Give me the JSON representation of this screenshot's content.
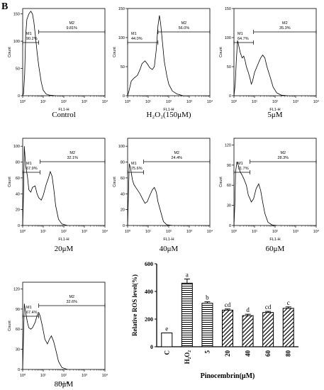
{
  "figure": {
    "panel_label": "B",
    "hist_ylabel": "Count",
    "hist_xlabel": "FL1-H",
    "xtick_labels": [
      "10⁰",
      "10¹",
      "10²",
      "10³",
      "10⁴"
    ]
  },
  "chart_data": [
    {
      "type": "histogram",
      "caption": "Control",
      "xscale": "log",
      "xlim": [
        1,
        10000
      ],
      "ylim": [
        0,
        160
      ],
      "yticks": [
        0,
        50,
        100,
        150
      ],
      "gates": [
        {
          "label": "M1",
          "percent": "90.2%",
          "from": 1,
          "to": 6
        },
        {
          "label": "M2",
          "percent": "9.81%",
          "from": 6,
          "to": 10000
        }
      ],
      "curve": [
        [
          1,
          0
        ],
        [
          1.1,
          4
        ],
        [
          1.25,
          40
        ],
        [
          1.4,
          110
        ],
        [
          1.6,
          140
        ],
        [
          2,
          150
        ],
        [
          2.5,
          155
        ],
        [
          3,
          150
        ],
        [
          3.5,
          135
        ],
        [
          4,
          115
        ],
        [
          5,
          80
        ],
        [
          6,
          55
        ],
        [
          8,
          25
        ],
        [
          10,
          10
        ],
        [
          14,
          3
        ],
        [
          20,
          1
        ],
        [
          40,
          0
        ]
      ]
    },
    {
      "type": "histogram",
      "caption": "H₂O₂(150μM)",
      "xscale": "log",
      "xlim": [
        1,
        10000
      ],
      "ylim": [
        0,
        150
      ],
      "yticks": [
        0,
        50,
        100,
        150
      ],
      "gates": [
        {
          "label": "M1",
          "percent": "44.0%",
          "from": 1,
          "to": 30
        },
        {
          "label": "M2",
          "percent": "56.0%",
          "from": 30,
          "to": 10000
        }
      ],
      "curve": [
        [
          1,
          0
        ],
        [
          1.2,
          10
        ],
        [
          1.5,
          25
        ],
        [
          2,
          30
        ],
        [
          3,
          35
        ],
        [
          4,
          45
        ],
        [
          5,
          55
        ],
        [
          7,
          60
        ],
        [
          9,
          55
        ],
        [
          12,
          48
        ],
        [
          16,
          45
        ],
        [
          20,
          50
        ],
        [
          25,
          80
        ],
        [
          30,
          120
        ],
        [
          35,
          138
        ],
        [
          40,
          125
        ],
        [
          50,
          90
        ],
        [
          60,
          60
        ],
        [
          80,
          35
        ],
        [
          100,
          20
        ],
        [
          150,
          8
        ],
        [
          250,
          3
        ],
        [
          500,
          0
        ]
      ]
    },
    {
      "type": "histogram",
      "caption": "5μM",
      "xscale": "log",
      "xlim": [
        1,
        10000
      ],
      "ylim": [
        0,
        150
      ],
      "yticks": [
        0,
        50,
        100,
        150
      ],
      "gates": [
        {
          "label": "M1",
          "percent": "64.7%",
          "from": 1,
          "to": 9
        },
        {
          "label": "M2",
          "percent": "35.3%",
          "from": 9,
          "to": 10000
        }
      ],
      "curve": [
        [
          1,
          0
        ],
        [
          1.15,
          20
        ],
        [
          1.3,
          60
        ],
        [
          1.5,
          95
        ],
        [
          2,
          75
        ],
        [
          2.5,
          65
        ],
        [
          3,
          68
        ],
        [
          3.5,
          60
        ],
        [
          4,
          50
        ],
        [
          5,
          40
        ],
        [
          6,
          30
        ],
        [
          7,
          20
        ],
        [
          8,
          25
        ],
        [
          10,
          40
        ],
        [
          15,
          55
        ],
        [
          20,
          65
        ],
        [
          25,
          70
        ],
        [
          32,
          65
        ],
        [
          40,
          50
        ],
        [
          60,
          30
        ],
        [
          80,
          15
        ],
        [
          120,
          5
        ],
        [
          200,
          1
        ],
        [
          400,
          0
        ]
      ]
    },
    {
      "type": "histogram",
      "caption": "20μM",
      "xscale": "log",
      "xlim": [
        1,
        10000
      ],
      "ylim": [
        0,
        110
      ],
      "yticks": [
        0,
        20,
        40,
        60,
        80,
        100
      ],
      "gates": [
        {
          "label": "M1",
          "percent": "67.9%",
          "from": 1,
          "to": 7
        },
        {
          "label": "M2",
          "percent": "32.1%",
          "from": 7,
          "to": 10000
        }
      ],
      "curve": [
        [
          1,
          0
        ],
        [
          1.1,
          40
        ],
        [
          1.2,
          100
        ],
        [
          1.4,
          75
        ],
        [
          1.7,
          62
        ],
        [
          2,
          45
        ],
        [
          2.5,
          42
        ],
        [
          3,
          48
        ],
        [
          4,
          50
        ],
        [
          5,
          40
        ],
        [
          6,
          35
        ],
        [
          8,
          32
        ],
        [
          10,
          38
        ],
        [
          14,
          52
        ],
        [
          18,
          60
        ],
        [
          22,
          68
        ],
        [
          27,
          62
        ],
        [
          33,
          45
        ],
        [
          40,
          25
        ],
        [
          55,
          8
        ],
        [
          80,
          2
        ],
        [
          150,
          0
        ]
      ]
    },
    {
      "type": "histogram",
      "caption": "40μM",
      "xscale": "log",
      "xlim": [
        1,
        10000
      ],
      "ylim": [
        0,
        110
      ],
      "yticks": [
        0,
        20,
        40,
        60,
        80,
        100
      ],
      "gates": [
        {
          "label": "M1",
          "percent": "75.6%",
          "from": 1,
          "to": 6
        },
        {
          "label": "M2",
          "percent": "24.4%",
          "from": 6,
          "to": 10000
        }
      ],
      "curve": [
        [
          1,
          0
        ],
        [
          1.1,
          40
        ],
        [
          1.2,
          78
        ],
        [
          1.4,
          72
        ],
        [
          1.7,
          58
        ],
        [
          2,
          52
        ],
        [
          2.5,
          48
        ],
        [
          3,
          45
        ],
        [
          4,
          40
        ],
        [
          5,
          35
        ],
        [
          7,
          28
        ],
        [
          9,
          30
        ],
        [
          12,
          38
        ],
        [
          16,
          45
        ],
        [
          20,
          48
        ],
        [
          25,
          42
        ],
        [
          30,
          30
        ],
        [
          40,
          18
        ],
        [
          55,
          5
        ],
        [
          80,
          1
        ],
        [
          150,
          0
        ]
      ]
    },
    {
      "type": "histogram",
      "caption": "60μM",
      "xscale": "log",
      "xlim": [
        1,
        10000
      ],
      "ylim": [
        0,
        130
      ],
      "yticks": [
        0,
        30,
        60,
        90,
        120
      ],
      "gates": [
        {
          "label": "M1",
          "percent": "71.7%",
          "from": 1,
          "to": 6
        },
        {
          "label": "M2",
          "percent": "28.3%",
          "from": 6,
          "to": 10000
        }
      ],
      "curve": [
        [
          1,
          0
        ],
        [
          1.1,
          30
        ],
        [
          1.2,
          80
        ],
        [
          1.4,
          95
        ],
        [
          1.7,
          88
        ],
        [
          2,
          80
        ],
        [
          2.5,
          75
        ],
        [
          3,
          70
        ],
        [
          4,
          60
        ],
        [
          5,
          45
        ],
        [
          6,
          40
        ],
        [
          7,
          35
        ],
        [
          9,
          40
        ],
        [
          12,
          55
        ],
        [
          16,
          62
        ],
        [
          20,
          52
        ],
        [
          25,
          35
        ],
        [
          32,
          18
        ],
        [
          45,
          5
        ],
        [
          70,
          1
        ],
        [
          120,
          0
        ]
      ]
    },
    {
      "type": "histogram",
      "caption": "80μM",
      "xscale": "log",
      "xlim": [
        1,
        10000
      ],
      "ylim": [
        0,
        130
      ],
      "yticks": [
        0,
        30,
        60,
        90,
        120
      ],
      "gates": [
        {
          "label": "M1",
          "percent": "67.4%",
          "from": 1,
          "to": 6
        },
        {
          "label": "M2",
          "percent": "32.6%",
          "from": 6,
          "to": 10000
        }
      ],
      "curve": [
        [
          1,
          0
        ],
        [
          1.1,
          50
        ],
        [
          1.2,
          98
        ],
        [
          1.4,
          85
        ],
        [
          1.7,
          70
        ],
        [
          2,
          62
        ],
        [
          2.5,
          60
        ],
        [
          3,
          62
        ],
        [
          4,
          70
        ],
        [
          5,
          80
        ],
        [
          6,
          85
        ],
        [
          7,
          80
        ],
        [
          9,
          65
        ],
        [
          12,
          45
        ],
        [
          16,
          38
        ],
        [
          20,
          45
        ],
        [
          25,
          50
        ],
        [
          32,
          42
        ],
        [
          40,
          30
        ],
        [
          55,
          12
        ],
        [
          80,
          3
        ],
        [
          150,
          0
        ]
      ]
    },
    {
      "type": "bar",
      "title": "",
      "xlabel": "Pinocembrin(μM)",
      "ylabel": "Relative ROS level(%)",
      "ylim": [
        0,
        600
      ],
      "yticks": [
        0,
        200,
        400,
        600
      ],
      "categories": [
        "C",
        "H₂O₂",
        "5",
        "20",
        "40",
        "60",
        "80"
      ],
      "values": [
        100,
        460,
        315,
        265,
        225,
        248,
        278
      ],
      "errors": [
        0,
        30,
        10,
        8,
        10,
        8,
        10
      ],
      "letters": [
        "e",
        "a",
        "b",
        "cd",
        "d",
        "cd",
        "c"
      ],
      "patterns": [
        "solid",
        "hlines",
        "hlines",
        "diag",
        "diag",
        "diag",
        "diag"
      ]
    }
  ]
}
